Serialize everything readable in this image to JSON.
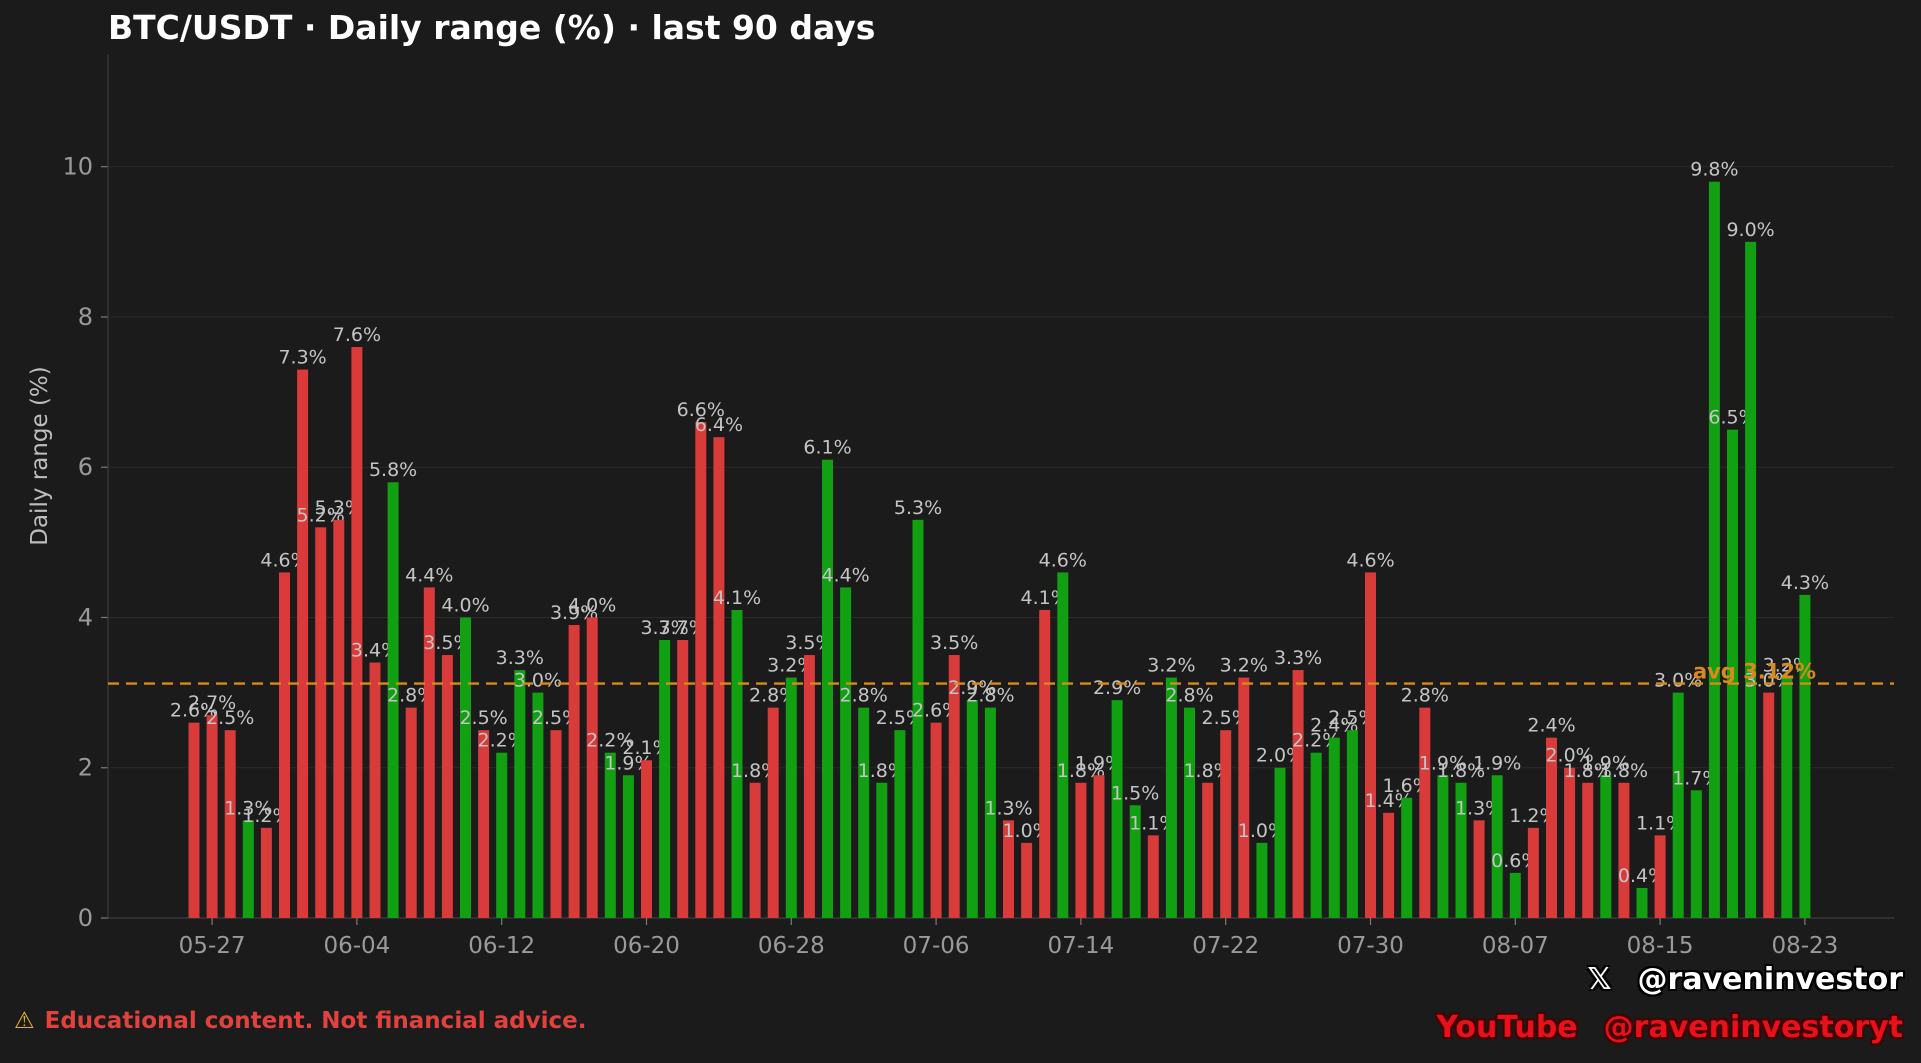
{
  "chart_data": {
    "type": "bar",
    "title": "BTC/USDT · Daily range (%) · last 90 days",
    "xlabel": "",
    "ylabel": "Daily range (%)",
    "ylim": [
      0,
      11.5
    ],
    "yticks": [
      0,
      2,
      4,
      6,
      8,
      10
    ],
    "grid": true,
    "x_start_date": "05-26",
    "xtick_labels": [
      "05-27",
      "06-04",
      "06-12",
      "06-20",
      "06-28",
      "07-06",
      "07-14",
      "07-22",
      "07-30",
      "08-07",
      "08-15",
      "08-23"
    ],
    "label_unit": "%",
    "values": [
      2.6,
      2.7,
      2.5,
      1.3,
      1.2,
      4.6,
      7.3,
      5.2,
      5.3,
      7.6,
      3.4,
      5.8,
      2.8,
      4.4,
      3.5,
      4.0,
      2.5,
      2.2,
      3.3,
      3.0,
      2.5,
      3.9,
      4.0,
      2.2,
      1.9,
      2.1,
      3.7,
      3.7,
      6.6,
      6.4,
      4.1,
      1.8,
      2.8,
      3.2,
      3.5,
      6.1,
      4.4,
      2.8,
      1.8,
      2.5,
      5.3,
      2.6,
      3.5,
      2.9,
      2.8,
      1.3,
      1.0,
      4.1,
      4.6,
      1.8,
      1.9,
      2.9,
      1.5,
      1.1,
      3.2,
      2.8,
      1.8,
      2.5,
      3.2,
      1.0,
      2.0,
      3.3,
      2.2,
      2.4,
      2.5,
      4.6,
      1.4,
      1.6,
      2.8,
      1.9,
      1.8,
      1.3,
      1.9,
      0.6,
      1.2,
      2.4,
      2.0,
      1.8,
      1.9,
      1.8,
      0.4,
      1.1,
      3.0,
      1.7,
      9.8,
      6.5,
      9.0,
      3.0,
      3.2,
      4.3
    ],
    "direction": [
      "down",
      "down",
      "down",
      "up",
      "down",
      "down",
      "down",
      "down",
      "down",
      "down",
      "down",
      "up",
      "down",
      "down",
      "down",
      "up",
      "down",
      "up",
      "up",
      "up",
      "down",
      "down",
      "down",
      "up",
      "up",
      "down",
      "up",
      "down",
      "down",
      "down",
      "up",
      "down",
      "down",
      "up",
      "down",
      "up",
      "up",
      "up",
      "up",
      "up",
      "up",
      "down",
      "down",
      "up",
      "up",
      "down",
      "down",
      "down",
      "up",
      "down",
      "down",
      "up",
      "up",
      "down",
      "up",
      "up",
      "down",
      "down",
      "down",
      "up",
      "up",
      "down",
      "up",
      "up",
      "up",
      "down",
      "down",
      "up",
      "down",
      "up",
      "up",
      "down",
      "up",
      "up",
      "down",
      "down",
      "down",
      "down",
      "up",
      "down",
      "up",
      "down",
      "up",
      "up",
      "up",
      "up",
      "up",
      "down",
      "up",
      "up"
    ],
    "series_colors": {
      "up": "#11a011",
      "down": "#d93a3a"
    },
    "average": {
      "value": 3.12,
      "label": "avg 3.12%",
      "color": "#d88b1a"
    }
  },
  "disclaimer": {
    "icon": "⚠",
    "text": "Educational content. Not financial advice."
  },
  "social": {
    "x_platform": "𝕏",
    "x_handle": "@raveninvestor",
    "youtube_platform": "YouTube",
    "youtube_handle": "@raveninvestoryt"
  }
}
